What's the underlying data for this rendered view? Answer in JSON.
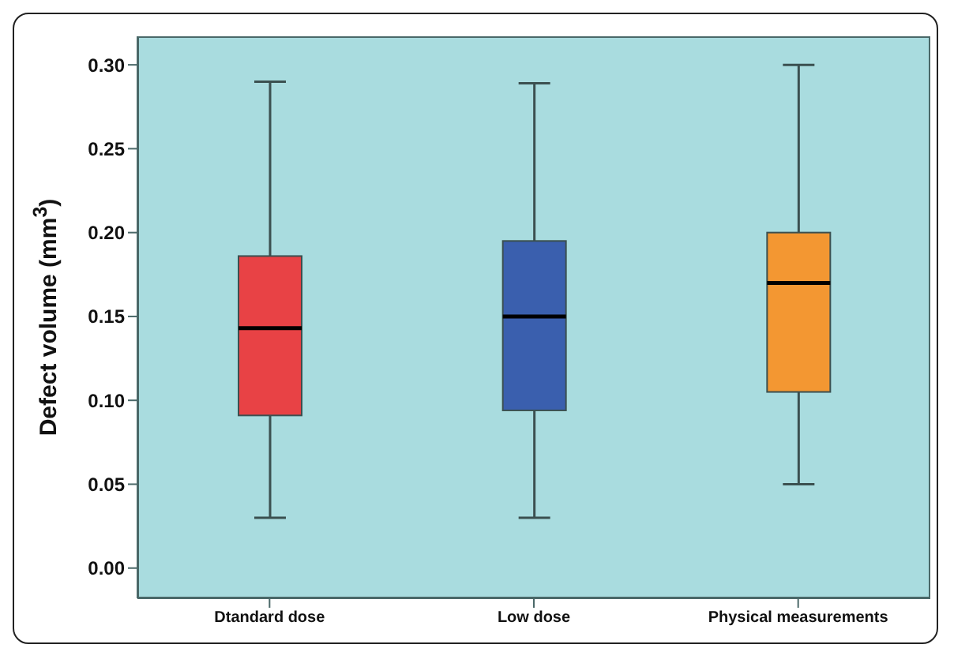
{
  "chart_data": {
    "type": "box",
    "ylabel": "Defect volume (mm$^{3}$)",
    "categories": [
      "Dtandard dose",
      "Low dose",
      "Physical measurements"
    ],
    "colors": [
      "#e84245",
      "#3a5fae",
      "#f39732"
    ],
    "boxes": [
      {
        "low": 0.03,
        "q1": 0.091,
        "median": 0.143,
        "q3": 0.186,
        "high": 0.29
      },
      {
        "low": 0.03,
        "q1": 0.094,
        "median": 0.15,
        "q3": 0.195,
        "high": 0.289
      },
      {
        "low": 0.05,
        "q1": 0.105,
        "median": 0.17,
        "q3": 0.2,
        "high": 0.3
      }
    ],
    "ylim": [
      -0.018,
      0.317
    ],
    "yticks": [
      {
        "value": 0,
        "label": "0.00"
      },
      {
        "value": 0.05,
        "label": "0.05"
      },
      {
        "value": 0.1,
        "label": "0.10"
      },
      {
        "value": 0.15,
        "label": "0.15"
      },
      {
        "value": 0.2,
        "label": "0.20"
      },
      {
        "value": 0.25,
        "label": "0.25"
      },
      {
        "value": 0.3,
        "label": "0.30"
      }
    ]
  }
}
